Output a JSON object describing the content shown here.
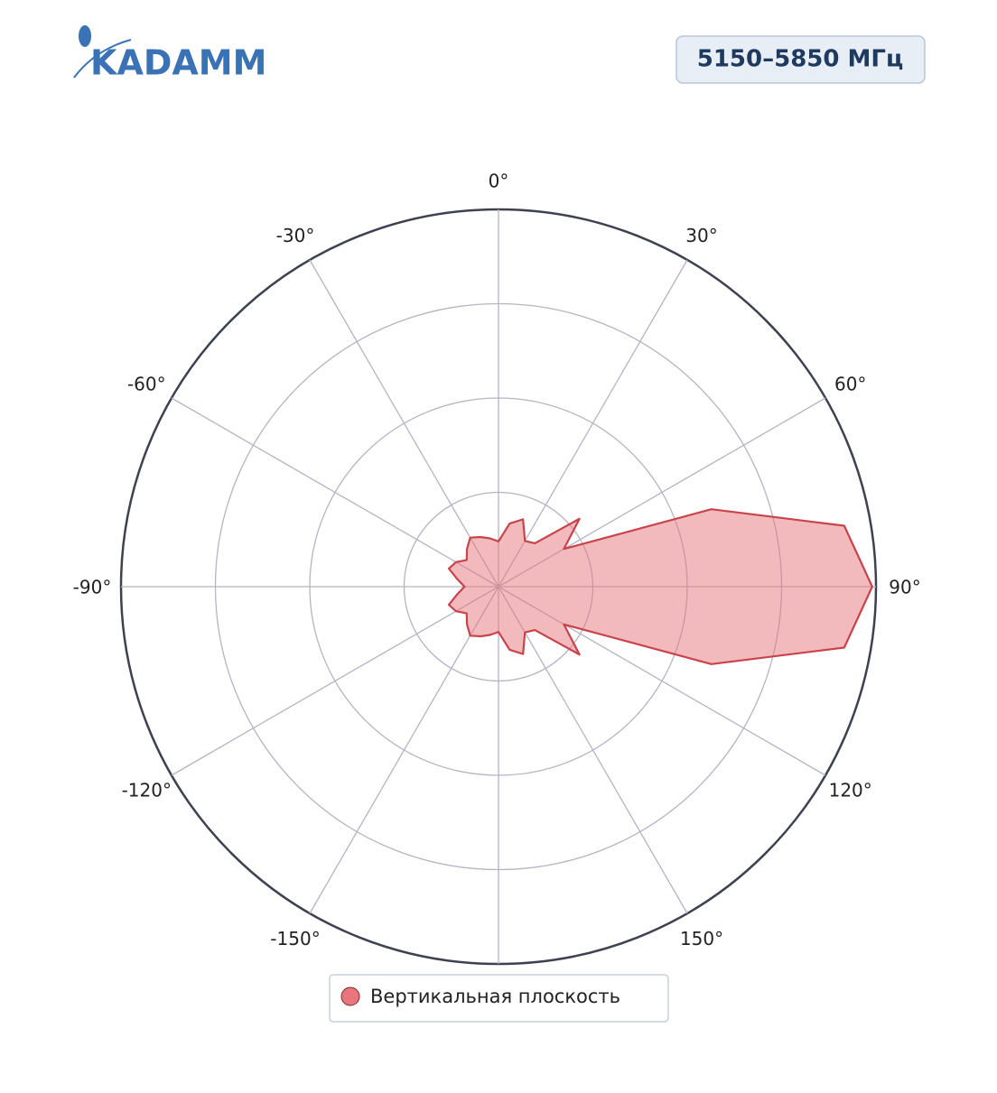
{
  "header": {
    "logo": "KADAMM",
    "band": "5150–5850 МГц"
  },
  "chart_data": {
    "type": "polar",
    "theta": [
      -170,
      -160,
      -150,
      -140,
      -130,
      -120,
      -110,
      -100,
      -90,
      -80,
      -70,
      -60,
      -50,
      -40,
      -30,
      -20,
      -10,
      0,
      10,
      20,
      30,
      40,
      50,
      60,
      70,
      80,
      90,
      100,
      110,
      120,
      130,
      140,
      150,
      160,
      170,
      180
    ],
    "series": [
      {
        "name": "Вертикальная плоскость",
        "color": "#e8767c",
        "values": [
          0.13,
          0.14,
          0.15,
          0.13,
          0.11,
          0.13,
          0.14,
          0.11,
          0.09,
          0.11,
          0.14,
          0.13,
          0.11,
          0.13,
          0.15,
          0.14,
          0.13,
          0.12,
          0.17,
          0.19,
          0.14,
          0.15,
          0.28,
          0.2,
          0.6,
          0.93,
          0.99,
          0.93,
          0.6,
          0.2,
          0.28,
          0.15,
          0.14,
          0.19,
          0.17,
          0.12
        ]
      }
    ],
    "rlim": [
      0,
      1
    ],
    "rticks": [
      0.25,
      0.5,
      0.75,
      1
    ],
    "thetaticks": [
      {
        "value": 0,
        "label": "0°"
      },
      {
        "value": 30,
        "label": "30°"
      },
      {
        "value": 60,
        "label": "60°"
      },
      {
        "value": 90,
        "label": "90°"
      },
      {
        "value": 120,
        "label": "120°"
      },
      {
        "value": 150,
        "label": "150°"
      },
      {
        "value": -150,
        "label": "-150°"
      },
      {
        "value": -120,
        "label": "-120°"
      },
      {
        "value": -90,
        "label": "-90°"
      },
      {
        "value": -60,
        "label": "-60°"
      },
      {
        "value": -30,
        "label": "-30°"
      }
    ],
    "direction": "clockwise",
    "zero": "top"
  }
}
